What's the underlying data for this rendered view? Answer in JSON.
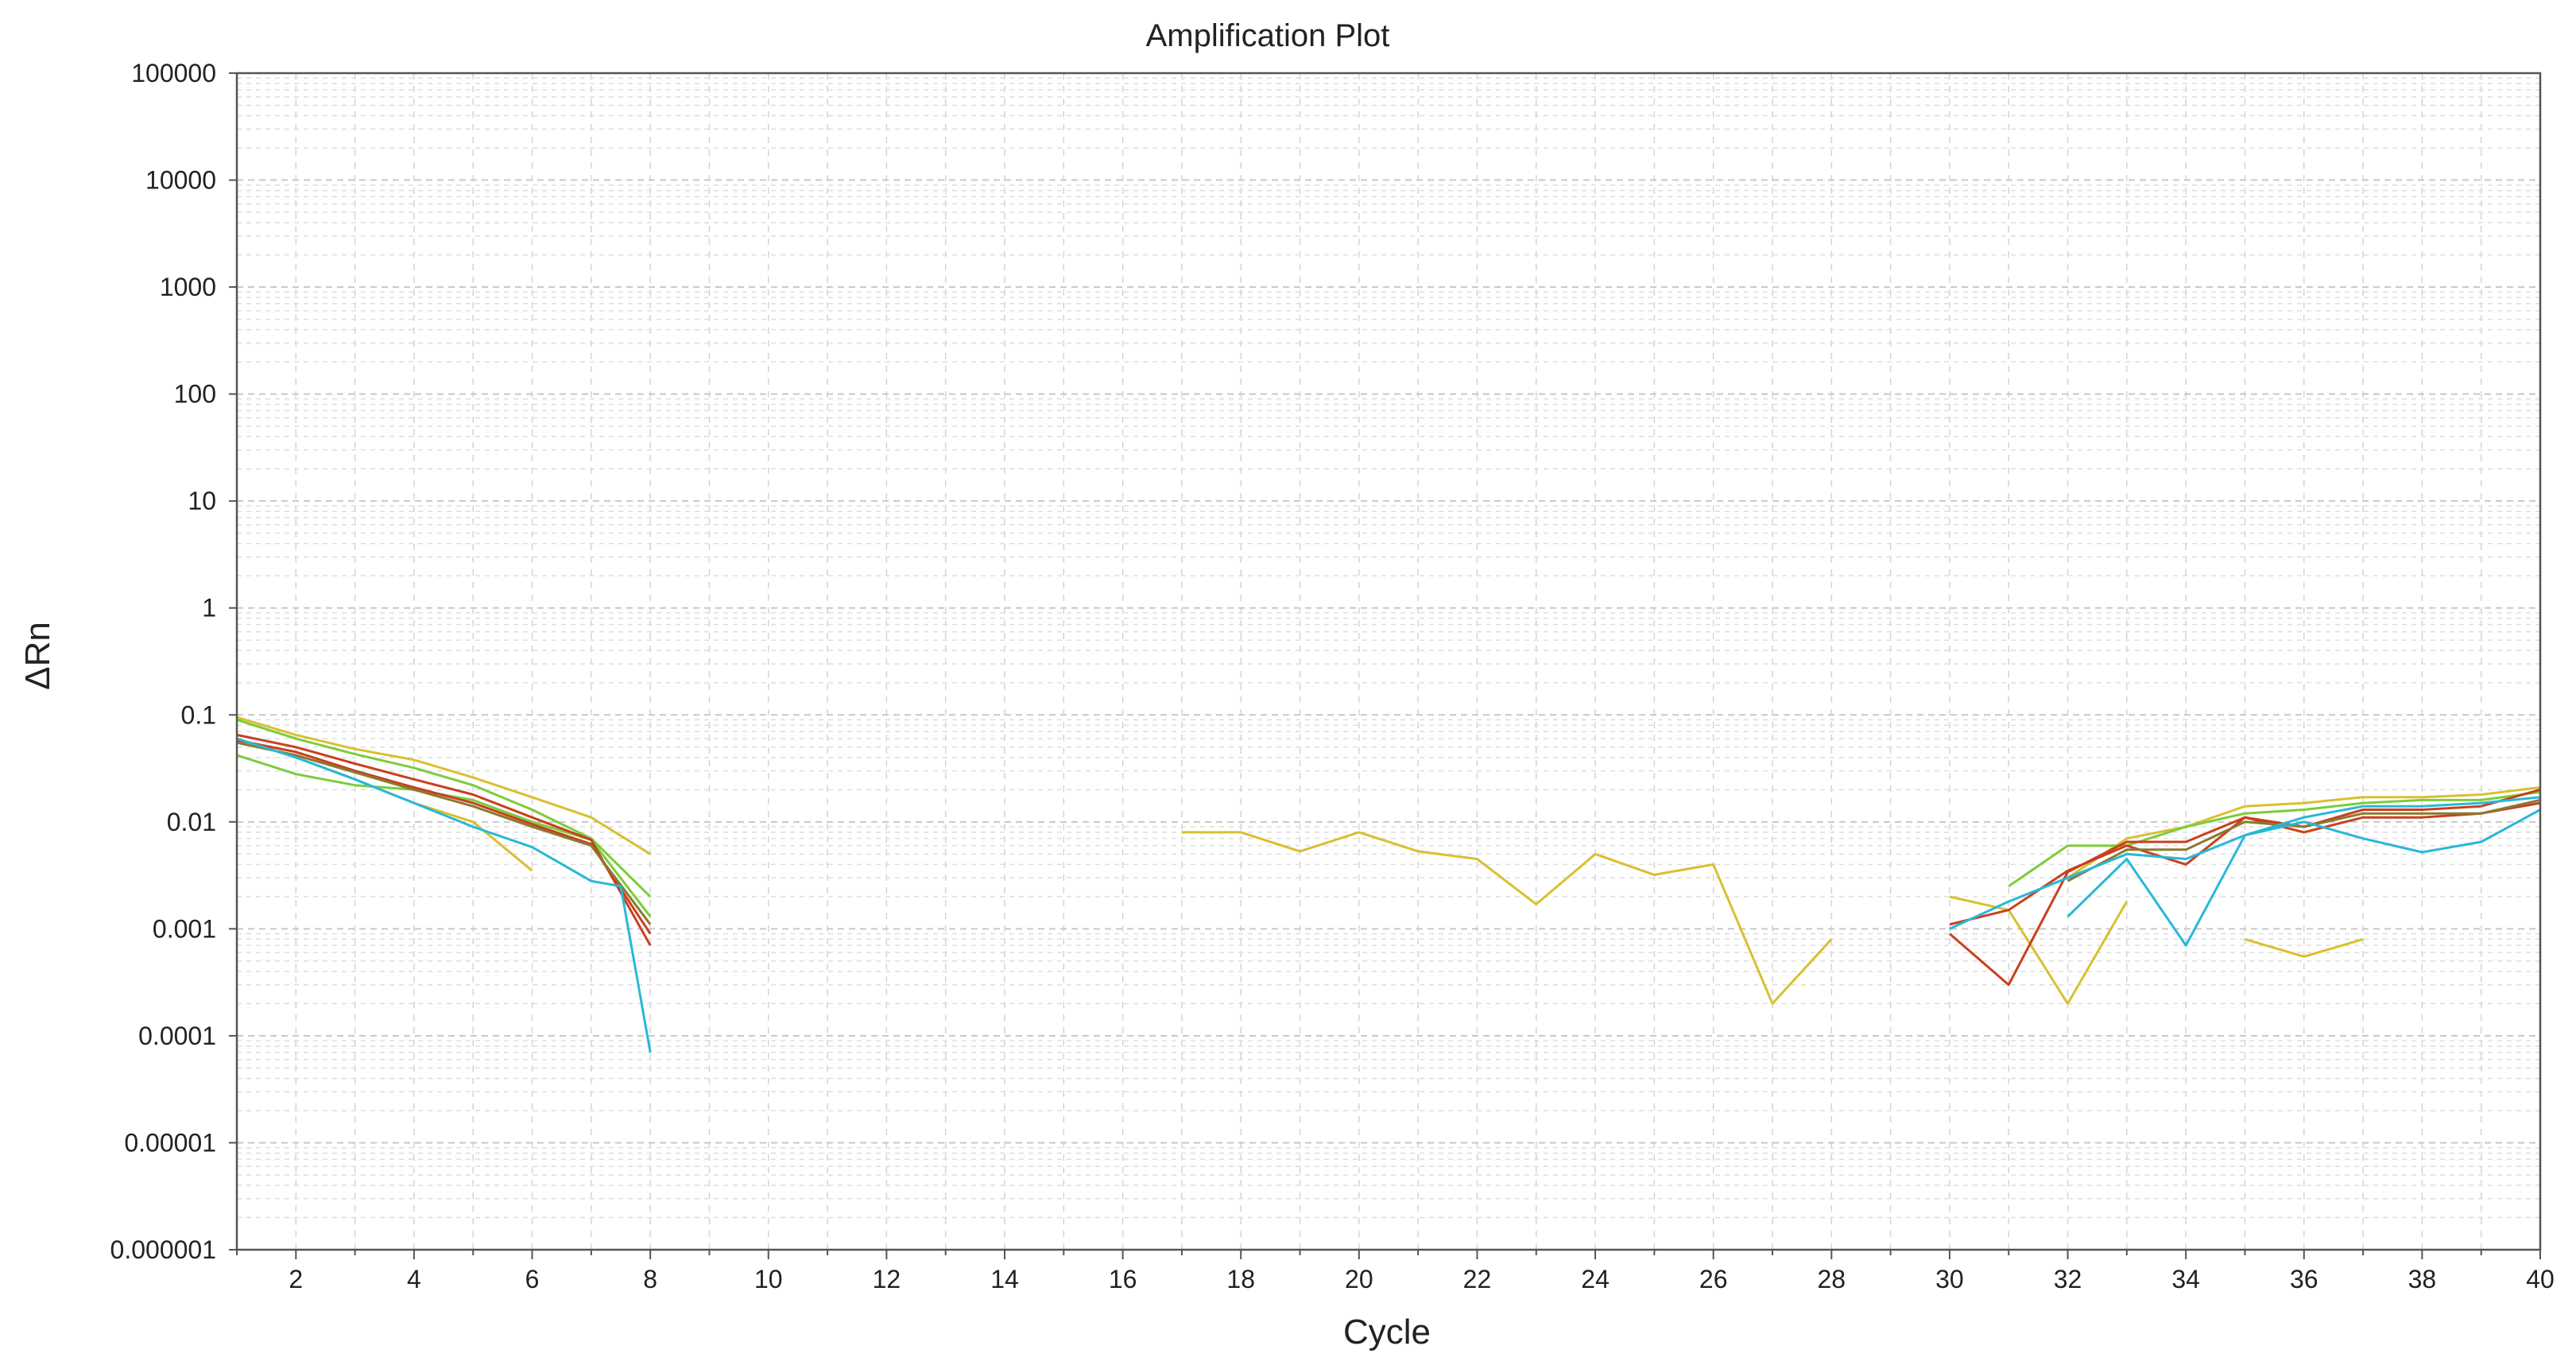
{
  "chart_data": {
    "type": "line",
    "title": "Amplification Plot",
    "xlabel": "Cycle",
    "ylabel": "ΔRn",
    "xlim": [
      1,
      40
    ],
    "ylim": [
      1e-06,
      100000
    ],
    "yscale": "log",
    "grid": true,
    "legend": "none",
    "x_ticks": [
      2,
      4,
      6,
      8,
      10,
      12,
      14,
      16,
      18,
      20,
      22,
      24,
      26,
      28,
      30,
      32,
      34,
      36,
      38,
      40
    ],
    "y_ticks": [
      {
        "value": 100000,
        "label": "100000"
      },
      {
        "value": 10000,
        "label": "10000"
      },
      {
        "value": 1000,
        "label": "1000"
      },
      {
        "value": 100,
        "label": "100"
      },
      {
        "value": 10,
        "label": "10"
      },
      {
        "value": 1,
        "label": "1"
      },
      {
        "value": 0.1,
        "label": "0.1"
      },
      {
        "value": 0.01,
        "label": "0.01"
      },
      {
        "value": 0.001,
        "label": "0.001"
      },
      {
        "value": 0.0001,
        "label": "0.0001"
      },
      {
        "value": 1e-05,
        "label": "0.00001"
      },
      {
        "value": 1e-06,
        "label": "0.000001"
      }
    ],
    "series": [
      {
        "color": "#d8c030",
        "points": [
          [
            1,
            0.095
          ],
          [
            2,
            0.065
          ],
          [
            3,
            0.048
          ],
          [
            4,
            0.038
          ],
          [
            5,
            0.026
          ],
          [
            6,
            0.017
          ],
          [
            7,
            0.011
          ],
          [
            8,
            0.005
          ]
        ]
      },
      {
        "color": "#d8c030",
        "points": [
          [
            1,
            0.06
          ],
          [
            2,
            0.04
          ],
          [
            3,
            0.025
          ],
          [
            4,
            0.015
          ],
          [
            5,
            0.01
          ],
          [
            6,
            0.0035
          ]
        ]
      },
      {
        "color": "#7ccc3a",
        "points": [
          [
            1,
            0.09
          ],
          [
            2,
            0.06
          ],
          [
            3,
            0.043
          ],
          [
            4,
            0.032
          ],
          [
            5,
            0.022
          ],
          [
            6,
            0.013
          ],
          [
            7,
            0.007
          ],
          [
            8,
            0.002
          ]
        ]
      },
      {
        "color": "#7ccc3a",
        "points": [
          [
            1,
            0.042
          ],
          [
            2,
            0.028
          ],
          [
            3,
            0.022
          ],
          [
            4,
            0.02
          ],
          [
            5,
            0.016
          ],
          [
            6,
            0.01
          ],
          [
            7,
            0.0068
          ],
          [
            8,
            0.0013
          ]
        ]
      },
      {
        "color": "#c8401e",
        "points": [
          [
            1,
            0.065
          ],
          [
            2,
            0.05
          ],
          [
            3,
            0.035
          ],
          [
            4,
            0.025
          ],
          [
            5,
            0.018
          ],
          [
            6,
            0.011
          ],
          [
            7,
            0.0068
          ],
          [
            8,
            0.0007
          ]
        ]
      },
      {
        "color": "#c8401e",
        "points": [
          [
            1,
            0.058
          ],
          [
            2,
            0.045
          ],
          [
            3,
            0.03
          ],
          [
            4,
            0.021
          ],
          [
            5,
            0.015
          ],
          [
            6,
            0.0095
          ],
          [
            7,
            0.0062
          ],
          [
            8,
            0.0009
          ]
        ]
      },
      {
        "color": "#8a7a30",
        "points": [
          [
            1,
            0.055
          ],
          [
            2,
            0.042
          ],
          [
            3,
            0.029
          ],
          [
            4,
            0.02
          ],
          [
            5,
            0.014
          ],
          [
            6,
            0.009
          ],
          [
            7,
            0.006
          ],
          [
            8,
            0.0011
          ]
        ]
      },
      {
        "color": "#28b8d8",
        "points": [
          [
            1,
            0.06
          ],
          [
            2,
            0.04
          ],
          [
            3,
            0.025
          ],
          [
            4,
            0.015
          ],
          [
            5,
            0.009
          ],
          [
            6,
            0.0058
          ],
          [
            7,
            0.0028
          ],
          [
            7.5,
            0.0025
          ],
          [
            8,
            7e-05
          ]
        ]
      },
      {
        "color": "#d8c030",
        "points": [
          [
            17,
            0.008
          ],
          [
            18,
            0.008
          ],
          [
            19,
            0.0053
          ],
          [
            20,
            0.008
          ],
          [
            21,
            0.0053
          ],
          [
            22,
            0.0045
          ],
          [
            23,
            0.0017
          ],
          [
            24,
            0.005
          ],
          [
            25,
            0.0032
          ],
          [
            26,
            0.004
          ],
          [
            27,
            0.0002
          ],
          [
            28,
            0.0008
          ]
        ]
      },
      {
        "color": "#d8c030",
        "points": [
          [
            30,
            0.002
          ],
          [
            31,
            0.0015
          ],
          [
            32,
            0.0002
          ],
          [
            33,
            0.0018
          ]
        ]
      },
      {
        "color": "#d8c030",
        "points": [
          [
            35,
            0.0008
          ],
          [
            36,
            0.00055
          ],
          [
            37,
            0.0008
          ]
        ]
      },
      {
        "color": "#d8c030",
        "points": [
          [
            32,
            0.003
          ],
          [
            33,
            0.007
          ],
          [
            34,
            0.009
          ],
          [
            35,
            0.014
          ],
          [
            36,
            0.015
          ],
          [
            37,
            0.017
          ],
          [
            38,
            0.017
          ],
          [
            39,
            0.018
          ],
          [
            40,
            0.021
          ]
        ]
      },
      {
        "color": "#7ccc3a",
        "points": [
          [
            31,
            0.0025
          ],
          [
            32,
            0.006
          ],
          [
            33,
            0.006
          ],
          [
            34,
            0.009
          ],
          [
            35,
            0.012
          ],
          [
            36,
            0.013
          ],
          [
            37,
            0.015
          ],
          [
            38,
            0.016
          ],
          [
            39,
            0.016
          ],
          [
            40,
            0.019
          ]
        ]
      },
      {
        "color": "#c8401e",
        "points": [
          [
            30,
            0.0009
          ],
          [
            31,
            0.0003
          ],
          [
            32,
            0.0034
          ],
          [
            33,
            0.0065
          ],
          [
            34,
            0.0065
          ],
          [
            35,
            0.011
          ],
          [
            36,
            0.009
          ],
          [
            37,
            0.013
          ],
          [
            38,
            0.013
          ],
          [
            39,
            0.014
          ],
          [
            40,
            0.02
          ]
        ]
      },
      {
        "color": "#c8401e",
        "points": [
          [
            30,
            0.0011
          ],
          [
            31,
            0.0015
          ],
          [
            32,
            0.0035
          ],
          [
            33,
            0.006
          ],
          [
            34,
            0.004
          ],
          [
            35,
            0.011
          ],
          [
            36,
            0.008
          ],
          [
            37,
            0.011
          ],
          [
            38,
            0.011
          ],
          [
            39,
            0.012
          ],
          [
            40,
            0.015
          ]
        ]
      },
      {
        "color": "#8a7a30",
        "points": [
          [
            32,
            0.0028
          ],
          [
            33,
            0.0055
          ],
          [
            34,
            0.0055
          ],
          [
            35,
            0.01
          ],
          [
            36,
            0.009
          ],
          [
            37,
            0.012
          ],
          [
            38,
            0.012
          ],
          [
            39,
            0.012
          ],
          [
            40,
            0.016
          ]
        ]
      },
      {
        "color": "#28b8d8",
        "points": [
          [
            30,
            0.001
          ],
          [
            31,
            0.0018
          ],
          [
            32,
            0.003
          ],
          [
            33,
            0.005
          ],
          [
            34,
            0.0045
          ],
          [
            35,
            0.0075
          ],
          [
            36,
            0.011
          ],
          [
            37,
            0.014
          ],
          [
            38,
            0.014
          ],
          [
            39,
            0.015
          ],
          [
            40,
            0.017
          ]
        ]
      },
      {
        "color": "#28b8d8",
        "points": [
          [
            32,
            0.0013
          ],
          [
            33,
            0.0045
          ],
          [
            34,
            0.0007
          ],
          [
            35,
            0.0075
          ],
          [
            36,
            0.01
          ],
          [
            37,
            0.007
          ],
          [
            38,
            0.0052
          ],
          [
            39,
            0.0065
          ],
          [
            40,
            0.013
          ]
        ]
      }
    ]
  }
}
